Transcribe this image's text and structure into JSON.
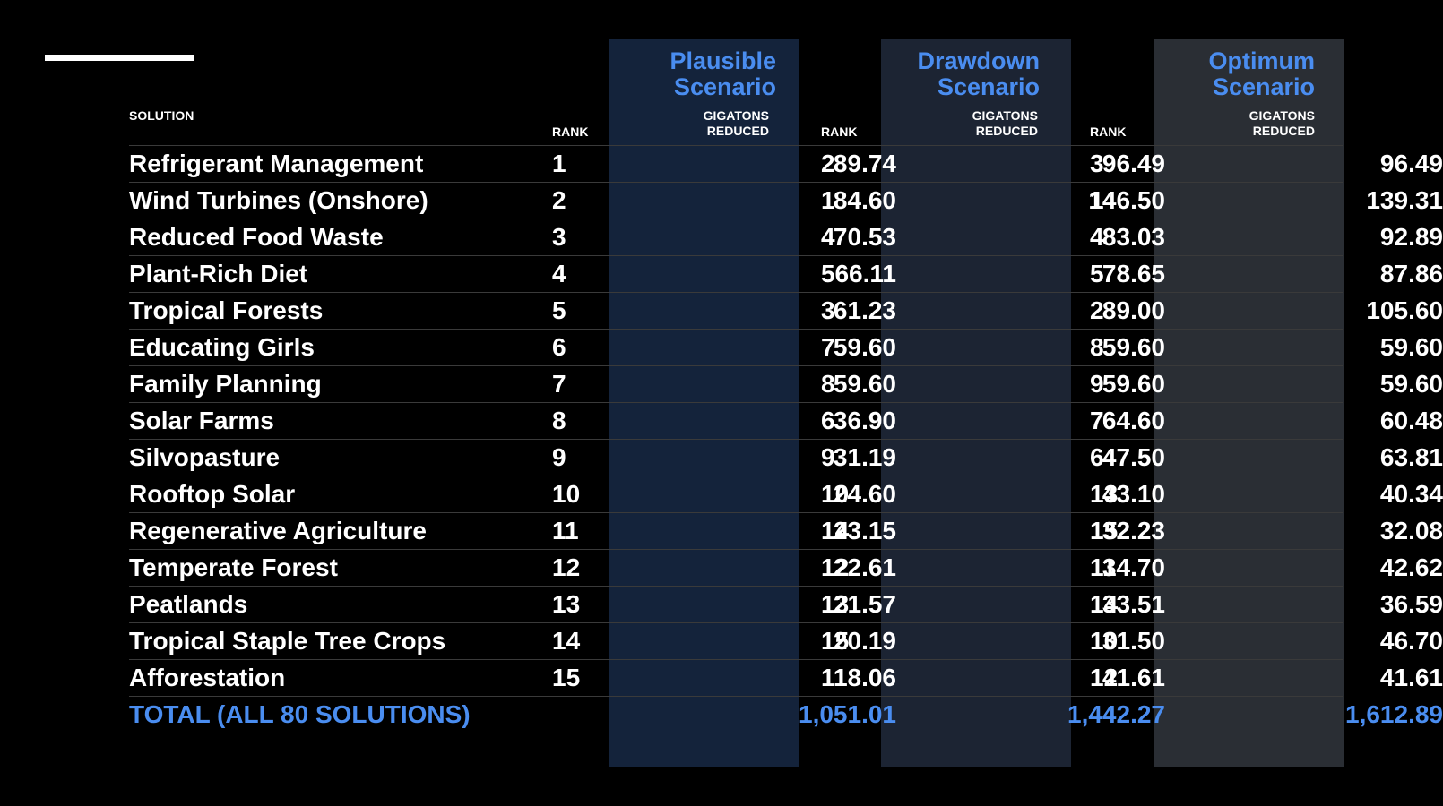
{
  "scenarios": {
    "plausible": "Plausible Scenario",
    "drawdown": "Drawdown Scenario",
    "optimum": "Optimum Scenario"
  },
  "headers": {
    "solution": "SOLUTION",
    "rank": "RANK",
    "gigatons_line1": "GIGATONS",
    "gigatons_line2": "REDUCED"
  },
  "colors": {
    "accent": "#4a8df0",
    "plausible_bg": "#14233b",
    "drawdown_bg": "#1c2433",
    "optimum_bg": "#2a2e34"
  },
  "rows": [
    {
      "name": "Refrigerant Management",
      "rank1": "1",
      "val1": "89.74",
      "rank2": "2",
      "val2": "96.49",
      "rank3": "3",
      "val3": "96.49"
    },
    {
      "name": "Wind Turbines (Onshore)",
      "rank1": "2",
      "val1": "84.60",
      "rank2": "1",
      "val2": "146.50",
      "rank3": "1",
      "val3": "139.31"
    },
    {
      "name": "Reduced Food Waste",
      "rank1": "3",
      "val1": "70.53",
      "rank2": "4",
      "val2": "83.03",
      "rank3": "4",
      "val3": "92.89"
    },
    {
      "name": "Plant-Rich Diet",
      "rank1": "4",
      "val1": "66.11",
      "rank2": "5",
      "val2": "78.65",
      "rank3": "5",
      "val3": "87.86"
    },
    {
      "name": "Tropical Forests",
      "rank1": "5",
      "val1": "61.23",
      "rank2": "3",
      "val2": "89.00",
      "rank3": "2",
      "val3": "105.60"
    },
    {
      "name": "Educating Girls",
      "rank1": "6",
      "val1": "59.60",
      "rank2": "7",
      "val2": "59.60",
      "rank3": "8",
      "val3": "59.60"
    },
    {
      "name": "Family Planning",
      "rank1": "7",
      "val1": "59.60",
      "rank2": "8",
      "val2": "59.60",
      "rank3": "9",
      "val3": "59.60"
    },
    {
      "name": "Solar Farms",
      "rank1": "8",
      "val1": "36.90",
      "rank2": "6",
      "val2": "64.60",
      "rank3": "7",
      "val3": "60.48"
    },
    {
      "name": "Silvopasture",
      "rank1": "9",
      "val1": "31.19",
      "rank2": "9",
      "val2": "47.50",
      "rank3": "6",
      "val3": "63.81"
    },
    {
      "name": "Rooftop Solar",
      "rank1": "10",
      "val1": "24.60",
      "rank2": "10",
      "val2": "43.10",
      "rank3": "13",
      "val3": "40.34"
    },
    {
      "name": "Regenerative Agriculture",
      "rank1": "11",
      "val1": "23.15",
      "rank2": "14",
      "val2": "32.23",
      "rank3": "15",
      "val3": "32.08"
    },
    {
      "name": "Temperate Forest",
      "rank1": "12",
      "val1": "22.61",
      "rank2": "12",
      "val2": "34.70",
      "rank3": "11",
      "val3": "42.62"
    },
    {
      "name": "Peatlands",
      "rank1": "13",
      "val1": "21.57",
      "rank2": "13",
      "val2": "33.51",
      "rank3": "14",
      "val3": "36.59"
    },
    {
      "name": "Tropical Staple Tree Crops",
      "rank1": "14",
      "val1": "20.19",
      "rank2": "15",
      "val2": "31.50",
      "rank3": "10",
      "val3": "46.70"
    },
    {
      "name": "Afforestation",
      "rank1": "15",
      "val1": "18.06",
      "rank2": "11",
      "val2": "41.61",
      "rank3": "12",
      "val3": "41.61"
    }
  ],
  "total": {
    "label": "TOTAL (ALL 80 SOLUTIONS)",
    "val1": "1,051.01",
    "val2": "1,442.27",
    "val3": "1,612.89"
  }
}
